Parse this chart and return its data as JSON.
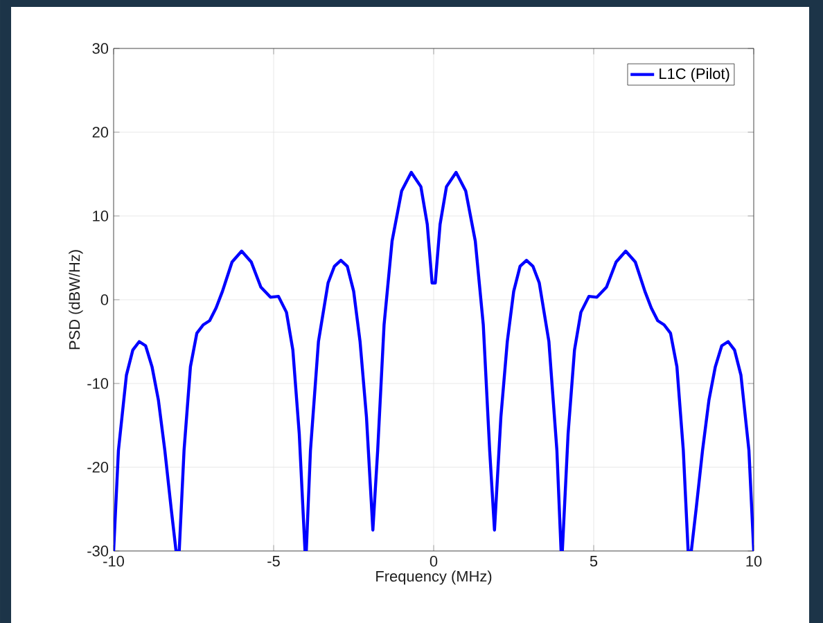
{
  "chart_data": {
    "type": "line",
    "xlabel": "Frequency (MHz)",
    "ylabel": "PSD (dBW/Hz)",
    "xlim": [
      -10,
      10
    ],
    "ylim": [
      -30,
      30
    ],
    "xticks": [
      -10,
      -5,
      0,
      5,
      10
    ],
    "yticks": [
      -30,
      -20,
      -10,
      0,
      10,
      20,
      30
    ],
    "grid": true,
    "legend": "top right",
    "marker": "none",
    "line_style": "solid",
    "series": [
      {
        "name": "L1C (Pilot)",
        "color": "#0000ff",
        "x": [
          -10,
          -9.85,
          -9.6,
          -9.4,
          -9.2,
          -9.0,
          -8.8,
          -8.6,
          -8.4,
          -8.2,
          -8.05,
          -7.95,
          -7.8,
          -7.6,
          -7.4,
          -7.2,
          -7.0,
          -6.8,
          -6.6,
          -6.3,
          -6.0,
          -5.7,
          -5.4,
          -5.1,
          -4.85,
          -4.6,
          -4.4,
          -4.2,
          -4.02,
          -3.98,
          -3.85,
          -3.6,
          -3.3,
          -3.1,
          -2.9,
          -2.7,
          -2.5,
          -2.3,
          -2.1,
          -1.9,
          -1.75,
          -1.55,
          -1.3,
          -1.0,
          -0.7,
          -0.4,
          -0.2,
          -0.05,
          0,
          0.05,
          0.2,
          0.4,
          0.7,
          1.0,
          1.3,
          1.55,
          1.75,
          1.9,
          2.1,
          2.3,
          2.5,
          2.7,
          2.9,
          3.1,
          3.3,
          3.6,
          3.85,
          3.98,
          4.02,
          4.2,
          4.4,
          4.6,
          4.85,
          5.1,
          5.4,
          5.7,
          6.0,
          6.3,
          6.6,
          6.8,
          7.0,
          7.2,
          7.4,
          7.6,
          7.8,
          7.95,
          8.05,
          8.2,
          8.4,
          8.6,
          8.8,
          9.0,
          9.2,
          9.4,
          9.6,
          9.85,
          10
        ],
        "values": [
          -30,
          -18,
          -9,
          -6,
          -5,
          -5.5,
          -8,
          -12,
          -18,
          -25,
          -30,
          -30,
          -18,
          -8,
          -4,
          -3,
          -2.5,
          -1,
          1,
          4.5,
          5.8,
          4.5,
          1.5,
          0.3,
          0.4,
          -1.5,
          -6,
          -16,
          -30,
          -30,
          -18,
          -5,
          2,
          4,
          4.7,
          4,
          1,
          -5,
          -14,
          -27.5,
          -18,
          -3,
          7,
          13,
          15.2,
          13.5,
          9,
          2,
          2,
          2,
          9,
          13.5,
          15.2,
          13,
          7,
          -3,
          -18,
          -27.5,
          -14,
          -5,
          1,
          4,
          4.7,
          4,
          2,
          -5,
          -18,
          -30,
          -30,
          -16,
          -6,
          -1.5,
          0.4,
          0.3,
          1.5,
          4.5,
          5.8,
          4.5,
          1,
          -1,
          -2.5,
          -3,
          -4,
          -8,
          -18,
          -30,
          -30,
          -25,
          -18,
          -12,
          -8,
          -5.5,
          -5,
          -6,
          -9,
          -18,
          -30
        ]
      }
    ]
  }
}
